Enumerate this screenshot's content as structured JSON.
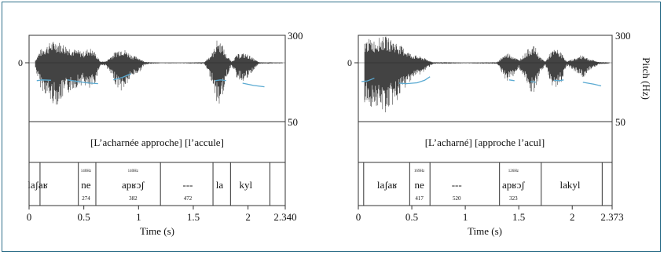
{
  "figure": {
    "pitch_axis_label": "Pitch (Hz)",
    "line_color": "#5aaad2",
    "panels": [
      {
        "id": "left",
        "wave_zero_label": "0",
        "pitch_max_label": "300",
        "pitch_min_label": "50",
        "sentence": "[L’acharnée approche] [l’accule]",
        "xlabel": "Time (s)",
        "duration": 2.34,
        "xticks": [
          {
            "t": 0,
            "label": "0"
          },
          {
            "t": 0.5,
            "label": "0.5"
          },
          {
            "t": 1,
            "label": "1"
          },
          {
            "t": 1.5,
            "label": "1.5"
          },
          {
            "t": 2,
            "label": "2"
          },
          {
            "t": 2.34,
            "label": "2.340"
          }
        ],
        "syllables": [
          {
            "text": "laʃaʁ",
            "t": 0.08
          },
          {
            "text": "ne",
            "t": 0.52,
            "hz": "140Hz",
            "dur": "274"
          },
          {
            "text": "apʁɔʃ",
            "t": 0.95,
            "hz": "140Hz",
            "dur": "382"
          },
          {
            "text": "---",
            "t": 1.45,
            "dur": "472"
          },
          {
            "text": "la",
            "t": 1.74
          },
          {
            "text": "kyl",
            "t": 1.98
          }
        ],
        "boundaries": [
          0.1,
          0.45,
          0.61,
          1.2,
          1.68,
          1.84,
          2.2
        ],
        "pitch_segments": [
          [
            [
              0.07,
              117
            ],
            [
              0.12,
              119
            ],
            [
              0.2,
              118
            ]
          ],
          [
            [
              0.35,
              119
            ],
            [
              0.42,
              116
            ],
            [
              0.52,
              112
            ],
            [
              0.63,
              110
            ]
          ],
          [
            [
              0.77,
              119
            ],
            [
              0.85,
              125
            ],
            [
              0.93,
              135
            ]
          ],
          [
            [
              1.7,
              117
            ],
            [
              1.75,
              119
            ],
            [
              1.8,
              117
            ]
          ],
          [
            [
              1.95,
              111
            ],
            [
              2.05,
              106
            ],
            [
              2.15,
              103
            ]
          ]
        ],
        "wave_envelope": [
          [
            0.05,
            0.05
          ],
          [
            0.1,
            0.45
          ],
          [
            0.15,
            0.6
          ],
          [
            0.2,
            0.75
          ],
          [
            0.25,
            0.8
          ],
          [
            0.3,
            0.7
          ],
          [
            0.35,
            0.6
          ],
          [
            0.4,
            0.5
          ],
          [
            0.45,
            0.45
          ],
          [
            0.5,
            0.4
          ],
          [
            0.55,
            0.55
          ],
          [
            0.6,
            0.4
          ],
          [
            0.65,
            0.05
          ],
          [
            0.7,
            0.05
          ],
          [
            0.8,
            0.45
          ],
          [
            0.85,
            0.55
          ],
          [
            0.9,
            0.4
          ],
          [
            0.95,
            0.25
          ],
          [
            1.0,
            0.2
          ],
          [
            1.05,
            0.05
          ],
          [
            1.1,
            0.02
          ],
          [
            1.2,
            0.01
          ],
          [
            1.4,
            0.01
          ],
          [
            1.6,
            0.02
          ],
          [
            1.68,
            0.4
          ],
          [
            1.72,
            0.85
          ],
          [
            1.76,
            0.7
          ],
          [
            1.8,
            0.3
          ],
          [
            1.85,
            0.05
          ],
          [
            1.9,
            0.3
          ],
          [
            1.95,
            0.35
          ],
          [
            2.0,
            0.3
          ],
          [
            2.05,
            0.15
          ],
          [
            2.1,
            0.02
          ],
          [
            2.34,
            0.01
          ]
        ]
      },
      {
        "id": "right",
        "wave_zero_label": "0",
        "pitch_max_label": "300",
        "pitch_min_label": "50",
        "sentence": "[L’acharné] [approche l’acul]",
        "xlabel": "Time (s)",
        "duration": 2.373,
        "xticks": [
          {
            "t": 0,
            "label": "0"
          },
          {
            "t": 0.5,
            "label": "0.5"
          },
          {
            "t": 1,
            "label": "1"
          },
          {
            "t": 1.5,
            "label": "1.5"
          },
          {
            "t": 2,
            "label": "2"
          },
          {
            "t": 2.373,
            "label": "2.373"
          }
        ],
        "syllables": [
          {
            "text": "laʃaʁ",
            "t": 0.27
          },
          {
            "text": "ne",
            "t": 0.57,
            "hz": "169Hz",
            "dur": "417"
          },
          {
            "text": "---",
            "t": 0.92,
            "dur": "520"
          },
          {
            "text": "apʁɔʃ",
            "t": 1.45,
            "hz": "126Hz",
            "dur": "323"
          },
          {
            "text": "lakyl",
            "t": 1.98
          }
        ],
        "boundaries": [
          0.05,
          0.48,
          0.67,
          1.32,
          1.71,
          2.28
        ],
        "pitch_segments": [
          [
            [
              0.03,
              115
            ],
            [
              0.08,
              116
            ],
            [
              0.15,
              123
            ]
          ],
          [
            [
              0.38,
              111
            ],
            [
              0.45,
              110
            ],
            [
              0.55,
              112
            ],
            [
              0.62,
              118
            ],
            [
              0.67,
              127
            ]
          ],
          [
            [
              1.41,
              119
            ],
            [
              1.46,
              117
            ]
          ],
          [
            [
              1.61,
              115
            ],
            [
              1.66,
              113
            ]
          ],
          [
            [
              1.83,
              118
            ],
            [
              1.88,
              117
            ],
            [
              1.92,
              119
            ]
          ],
          [
            [
              2.1,
              113
            ],
            [
              2.2,
              109
            ],
            [
              2.27,
              105
            ]
          ]
        ],
        "wave_envelope": [
          [
            0.0,
            0.05
          ],
          [
            0.05,
            0.75
          ],
          [
            0.1,
            0.85
          ],
          [
            0.15,
            0.8
          ],
          [
            0.2,
            0.9
          ],
          [
            0.25,
            0.95
          ],
          [
            0.3,
            0.85
          ],
          [
            0.35,
            0.75
          ],
          [
            0.4,
            0.6
          ],
          [
            0.45,
            0.45
          ],
          [
            0.5,
            0.3
          ],
          [
            0.55,
            0.25
          ],
          [
            0.6,
            0.2
          ],
          [
            0.65,
            0.1
          ],
          [
            0.7,
            0.02
          ],
          [
            0.8,
            0.02
          ],
          [
            1.0,
            0.01
          ],
          [
            1.3,
            0.02
          ],
          [
            1.35,
            0.25
          ],
          [
            1.4,
            0.35
          ],
          [
            1.45,
            0.25
          ],
          [
            1.5,
            0.1
          ],
          [
            1.55,
            0.3
          ],
          [
            1.6,
            0.55
          ],
          [
            1.65,
            0.6
          ],
          [
            1.7,
            0.2
          ],
          [
            1.75,
            0.05
          ],
          [
            1.8,
            0.4
          ],
          [
            1.85,
            0.5
          ],
          [
            1.9,
            0.35
          ],
          [
            1.95,
            0.05
          ],
          [
            2.05,
            0.2
          ],
          [
            2.1,
            0.3
          ],
          [
            2.15,
            0.15
          ],
          [
            2.25,
            0.03
          ],
          [
            2.373,
            0.01
          ]
        ]
      }
    ]
  }
}
